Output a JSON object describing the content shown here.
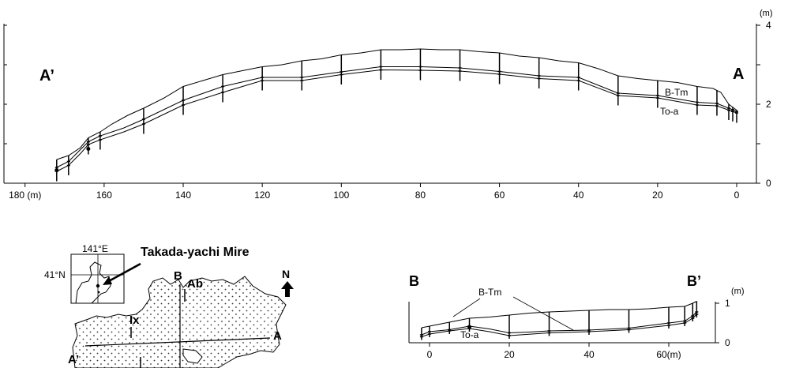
{
  "top_profile": {
    "section_left": "A’",
    "section_right": "A",
    "unit_label": "(m)",
    "x_ticks": [
      {
        "v": 180,
        "label": "180 (m)"
      },
      {
        "v": 160,
        "label": "160"
      },
      {
        "v": 140,
        "label": "140"
      },
      {
        "v": 120,
        "label": "120"
      },
      {
        "v": 100,
        "label": "100"
      },
      {
        "v": 80,
        "label": "80"
      },
      {
        "v": 60,
        "label": "60"
      },
      {
        "v": 40,
        "label": "40"
      },
      {
        "v": 20,
        "label": "20"
      },
      {
        "v": 0,
        "label": "0"
      }
    ],
    "y_ticks": [
      {
        "v": 0,
        "label": "0"
      },
      {
        "v": 1,
        "label": ""
      },
      {
        "v": 2,
        "label": "2"
      },
      {
        "v": 3,
        "label": ""
      },
      {
        "v": 4,
        "label": "4"
      }
    ],
    "layer_upper": "B-Tm",
    "layer_lower": "To-a",
    "surface": [
      [
        172,
        0.6
      ],
      [
        169,
        0.7
      ],
      [
        166,
        0.9
      ],
      [
        164,
        1.15
      ],
      [
        161,
        1.3
      ],
      [
        158,
        1.5
      ],
      [
        154,
        1.72
      ],
      [
        150,
        1.9
      ],
      [
        145,
        2.15
      ],
      [
        140,
        2.45
      ],
      [
        135,
        2.6
      ],
      [
        130,
        2.75
      ],
      [
        125,
        2.85
      ],
      [
        120,
        2.95
      ],
      [
        115,
        3.0
      ],
      [
        110,
        3.1
      ],
      [
        105,
        3.15
      ],
      [
        100,
        3.25
      ],
      [
        95,
        3.3
      ],
      [
        90,
        3.38
      ],
      [
        85,
        3.38
      ],
      [
        80,
        3.4
      ],
      [
        75,
        3.38
      ],
      [
        70,
        3.38
      ],
      [
        65,
        3.33
      ],
      [
        60,
        3.3
      ],
      [
        55,
        3.22
      ],
      [
        50,
        3.18
      ],
      [
        45,
        3.1
      ],
      [
        40,
        3.05
      ],
      [
        35,
        2.9
      ],
      [
        30,
        2.72
      ],
      [
        25,
        2.65
      ],
      [
        20,
        2.6
      ],
      [
        15,
        2.55
      ],
      [
        10,
        2.45
      ],
      [
        6,
        2.4
      ],
      [
        4,
        2.3
      ],
      [
        2,
        2.0
      ],
      [
        0,
        1.85
      ]
    ],
    "btm": [
      [
        172,
        0.4
      ],
      [
        169,
        0.55
      ],
      [
        166,
        0.85
      ],
      [
        164,
        1.05
      ],
      [
        161,
        1.2
      ],
      [
        155,
        1.4
      ],
      [
        150,
        1.62
      ],
      [
        140,
        2.1
      ],
      [
        130,
        2.45
      ],
      [
        120,
        2.68
      ],
      [
        110,
        2.68
      ],
      [
        100,
        2.82
      ],
      [
        90,
        2.95
      ],
      [
        80,
        2.95
      ],
      [
        70,
        2.92
      ],
      [
        60,
        2.83
      ],
      [
        50,
        2.72
      ],
      [
        40,
        2.68
      ],
      [
        30,
        2.28
      ],
      [
        20,
        2.22
      ],
      [
        10,
        2.05
      ],
      [
        5,
        2.02
      ],
      [
        2,
        1.9
      ],
      [
        0,
        1.82
      ]
    ],
    "toa": [
      [
        172,
        0.3
      ],
      [
        169,
        0.45
      ],
      [
        166,
        0.75
      ],
      [
        164,
        0.98
      ],
      [
        161,
        1.1
      ],
      [
        155,
        1.3
      ],
      [
        150,
        1.5
      ],
      [
        140,
        1.98
      ],
      [
        130,
        2.3
      ],
      [
        120,
        2.6
      ],
      [
        110,
        2.6
      ],
      [
        100,
        2.75
      ],
      [
        90,
        2.87
      ],
      [
        80,
        2.86
      ],
      [
        70,
        2.84
      ],
      [
        60,
        2.76
      ],
      [
        50,
        2.65
      ],
      [
        40,
        2.6
      ],
      [
        30,
        2.22
      ],
      [
        20,
        2.16
      ],
      [
        10,
        1.98
      ],
      [
        5,
        1.96
      ],
      [
        2,
        1.85
      ],
      [
        0,
        1.78
      ]
    ],
    "cores": [
      172,
      169,
      164,
      161,
      150,
      140,
      130,
      120,
      110,
      100,
      90,
      80,
      70,
      60,
      50,
      40,
      30,
      20,
      10,
      5,
      2,
      1,
      0
    ],
    "filled_points": [
      [
        172,
        0.33
      ],
      [
        164,
        0.87
      ]
    ]
  },
  "bottom_profile": {
    "section_left": "B",
    "section_right": "B’",
    "unit_label": "(m)",
    "x_ticks": [
      {
        "v": 0,
        "label": "0"
      },
      {
        "v": 20,
        "label": "20"
      },
      {
        "v": 40,
        "label": "40"
      },
      {
        "v": 60,
        "label": "60(m)"
      }
    ],
    "y_ticks": [
      {
        "v": 0,
        "label": "0"
      },
      {
        "v": 1,
        "label": "1"
      }
    ],
    "layer_upper": "B-Tm",
    "layer_lower": "To-a",
    "surface": [
      [
        -2,
        0.38
      ],
      [
        0,
        0.42
      ],
      [
        5,
        0.52
      ],
      [
        10,
        0.62
      ],
      [
        15,
        0.65
      ],
      [
        20,
        0.7
      ],
      [
        25,
        0.75
      ],
      [
        30,
        0.78
      ],
      [
        35,
        0.8
      ],
      [
        40,
        0.82
      ],
      [
        45,
        0.84
      ],
      [
        50,
        0.84
      ],
      [
        55,
        0.86
      ],
      [
        60,
        0.9
      ],
      [
        64,
        0.92
      ],
      [
        66,
        1.0
      ],
      [
        67,
        1.05
      ]
    ],
    "btm": [
      [
        -2,
        0.2
      ],
      [
        0,
        0.28
      ],
      [
        5,
        0.33
      ],
      [
        10,
        0.42
      ],
      [
        15,
        0.35
      ],
      [
        20,
        0.25
      ],
      [
        25,
        0.27
      ],
      [
        30,
        0.3
      ],
      [
        40,
        0.32
      ],
      [
        50,
        0.37
      ],
      [
        60,
        0.5
      ],
      [
        64,
        0.55
      ],
      [
        66,
        0.68
      ],
      [
        67,
        0.78
      ]
    ],
    "toa": [
      [
        -2,
        0.15
      ],
      [
        0,
        0.22
      ],
      [
        5,
        0.3
      ],
      [
        10,
        0.36
      ],
      [
        15,
        0.28
      ],
      [
        20,
        0.18
      ],
      [
        30,
        0.25
      ],
      [
        40,
        0.28
      ],
      [
        50,
        0.33
      ],
      [
        60,
        0.44
      ],
      [
        64,
        0.5
      ],
      [
        66,
        0.62
      ],
      [
        67,
        0.72
      ]
    ],
    "cores": [
      -2,
      0,
      5,
      10,
      20,
      30,
      40,
      50,
      60,
      64,
      66,
      67
    ],
    "filled_points": [
      [
        10,
        0.4
      ]
    ]
  },
  "map": {
    "site_name": "Takada-yachi Mire",
    "inset_lon": "141°E",
    "inset_lat": "41°N",
    "north_label": "N",
    "labels": {
      "B": "B",
      "Ab": "Ab",
      "Ix": "Ix",
      "A": "A",
      "A_prime": "A’"
    }
  },
  "colors": {
    "line": "#000000",
    "background": "#ffffff"
  }
}
